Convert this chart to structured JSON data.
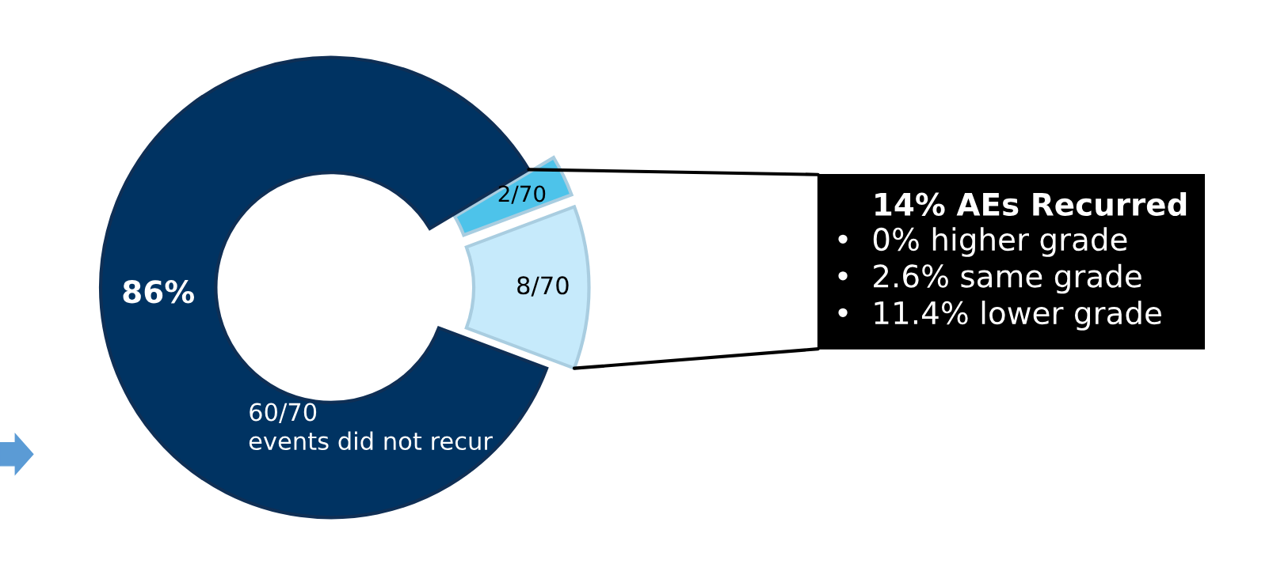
{
  "chart_data": {
    "type": "donut",
    "categories": [
      null,
      null,
      "events did not recur"
    ],
    "values": [
      8,
      2,
      60
    ],
    "colors": [
      "#c6eafb",
      "#4dc3ea",
      "#003362"
    ],
    "value_labels": [
      "8/70",
      "2/70",
      "60/70"
    ],
    "annotations": [
      "86%",
      "14% AEs Recurred",
      "•  0% higher grade",
      "•  2.6% same grade",
      "•  11.4% lower grade"
    ],
    "legend": false
  }
}
